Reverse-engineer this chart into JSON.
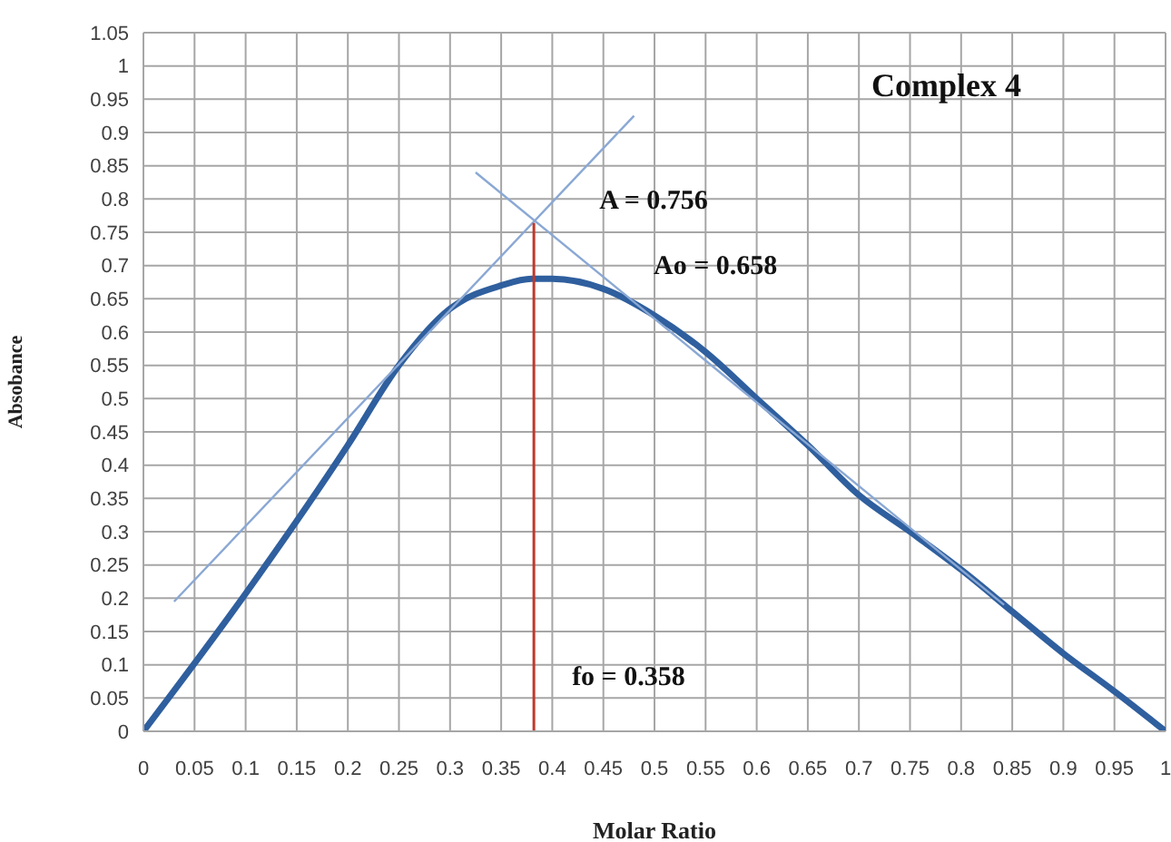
{
  "chart_data": {
    "type": "line",
    "title": "Complex 4",
    "xlabel": "Molar Ratio",
    "ylabel": "Absobance",
    "marker": "none",
    "grid": true,
    "xlim": [
      0,
      1
    ],
    "ylim": [
      0,
      1.05
    ],
    "xticks": [
      0,
      0.05,
      0.1,
      0.15,
      0.2,
      0.25,
      0.3,
      0.35,
      0.4,
      0.45,
      0.5,
      0.55,
      0.6,
      0.65,
      0.7,
      0.75,
      0.8,
      0.85,
      0.9,
      0.95,
      1
    ],
    "yticks": [
      0,
      0.05,
      0.1,
      0.15,
      0.2,
      0.25,
      0.3,
      0.35,
      0.4,
      0.45,
      0.5,
      0.55,
      0.6,
      0.65,
      0.7,
      0.75,
      0.8,
      0.85,
      0.9,
      0.95,
      1,
      1.05
    ],
    "series": [
      {
        "color": "#2f5f9e",
        "x": [
          0,
          0.1,
          0.2,
          0.25,
          0.3,
          0.35,
          0.38,
          0.4,
          0.45,
          0.5,
          0.55,
          0.6,
          0.65,
          0.7,
          0.75,
          0.8,
          0.85,
          0.9,
          0.95,
          1
        ],
        "values": [
          0,
          0.207,
          0.43,
          0.55,
          0.635,
          0.67,
          0.68,
          0.68,
          0.665,
          0.625,
          0.57,
          0.5,
          0.43,
          0.355,
          0.3,
          0.243,
          0.18,
          0.117,
          0.06,
          0
        ]
      },
      {
        "color": "#8aa8d4",
        "x": [
          0.03,
          0.48
        ],
        "values": [
          0.195,
          0.925
        ]
      },
      {
        "color": "#8aa8d4",
        "x": [
          0.325,
          0.842
        ],
        "values": [
          0.84,
          0.19
        ]
      },
      {
        "color": "#c0392b",
        "x": [
          0.382,
          0.382
        ],
        "values": [
          0,
          0.764
        ]
      }
    ],
    "annotations": [
      {
        "text": "A = 0.756",
        "x": 0.382,
        "y": 0.756
      },
      "Ao = 0.658",
      {
        "text": "fo = 0.358",
        "x": 0.382,
        "y": 0
      }
    ]
  }
}
